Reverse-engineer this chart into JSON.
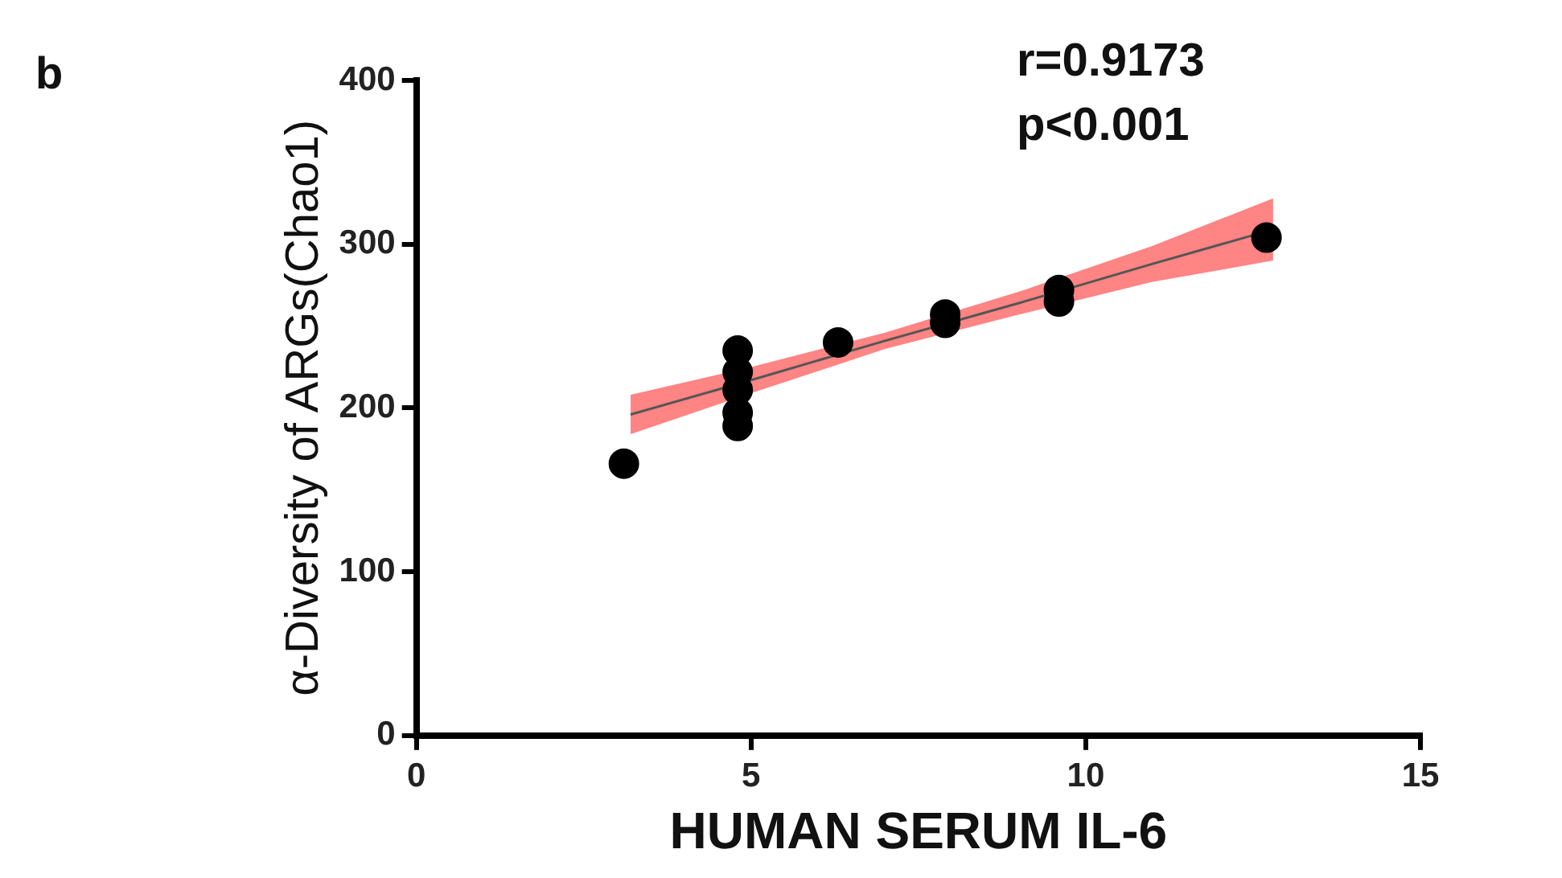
{
  "chart_data": {
    "type": "scatter",
    "xlabel": "HUMAN SERUM IL-6",
    "ylabel": "α-Diversity of ARGs(Chao1)",
    "annotations": [
      "b",
      "r=0.9173",
      "p<0.001"
    ],
    "series": [
      {
        "color": "#000000",
        "marker": "circle",
        "x": [
          3.1,
          4.8,
          4.8,
          4.8,
          4.8,
          4.8,
          6.3,
          7.9,
          7.9,
          9.6,
          9.6,
          12.7
        ],
        "values": [
          166,
          235,
          222,
          211,
          197,
          189,
          240,
          252,
          257,
          265,
          272,
          304
        ]
      },
      {
        "type": "line",
        "color": "#555555",
        "marker": "none",
        "x": [
          3.2,
          5,
          7,
          9,
          11,
          12.8
        ],
        "values": [
          196,
          217,
          241,
          264,
          288,
          309
        ],
        "lower": [
          184,
          209,
          236,
          257,
          277,
          290
        ],
        "upper": [
          208,
          225,
          246,
          271,
          299,
          328
        ]
      }
    ],
    "xlim": [
      0,
      15
    ],
    "xticks": [
      0,
      5,
      10,
      15
    ],
    "ylim": [
      0,
      400
    ],
    "yticks": [
      0,
      100,
      200,
      300,
      400
    ],
    "grid": false,
    "legend": false
  }
}
